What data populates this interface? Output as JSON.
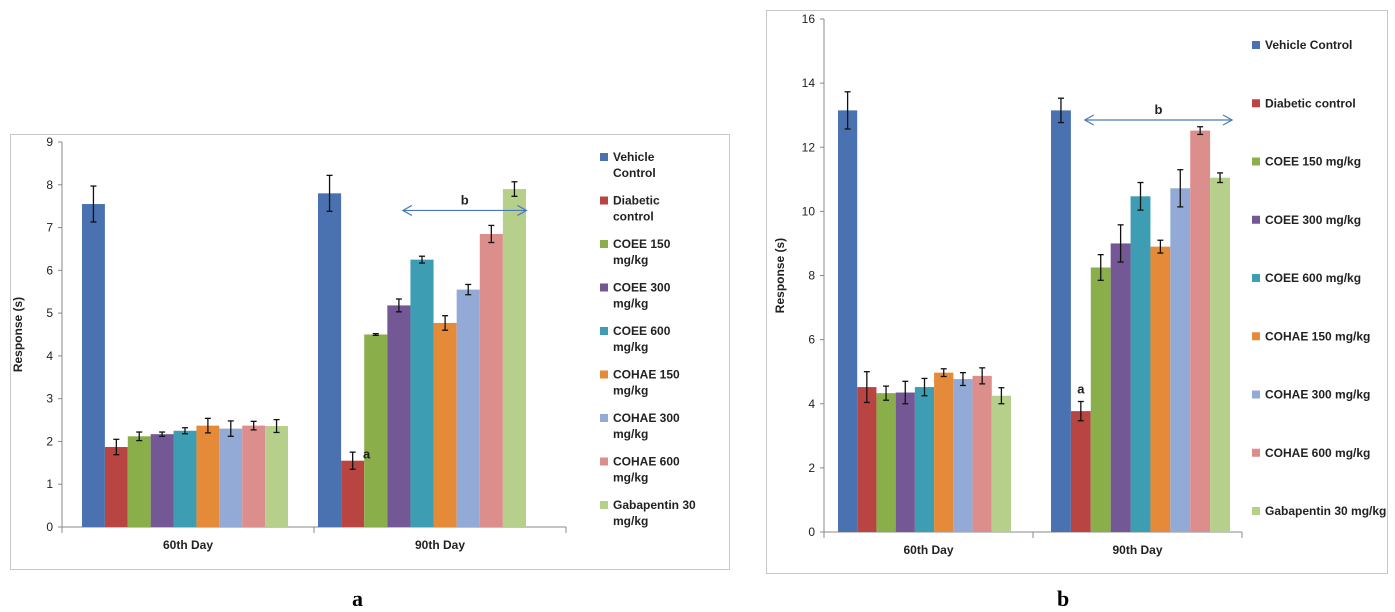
{
  "panel_labels": [
    "a",
    "b"
  ],
  "colors": [
    "#4a72b0",
    "#b94543",
    "#8aae4a",
    "#735895",
    "#3d9db3",
    "#e58a39",
    "#93aad6",
    "#dc8e8c",
    "#b6d08c"
  ],
  "chart_data": [
    {
      "type": "bar",
      "panel": "a",
      "ylabel": "Response (s)",
      "xlabel": "",
      "categories": [
        "60th Day",
        "90th Day"
      ],
      "ylim": [
        0,
        9
      ],
      "yticks": [
        0,
        1,
        2,
        3,
        4,
        5,
        6,
        7,
        8,
        9
      ],
      "legend_position": "right",
      "series": [
        {
          "name": "Vehicle Control",
          "values": [
            7.55,
            7.8
          ],
          "errors": [
            0.42,
            0.42
          ]
        },
        {
          "name": "Diabetic control",
          "values": [
            1.87,
            1.55
          ],
          "errors": [
            0.18,
            0.2
          ]
        },
        {
          "name": "COEE 150 mg/kg",
          "values": [
            2.12,
            4.5
          ],
          "errors": [
            0.1,
            0.02
          ]
        },
        {
          "name": "COEE 300 mg/kg",
          "values": [
            2.17,
            5.18
          ],
          "errors": [
            0.05,
            0.15
          ]
        },
        {
          "name": "COEE 600 mg/kg",
          "values": [
            2.25,
            6.25
          ],
          "errors": [
            0.07,
            0.08
          ]
        },
        {
          "name": "COHAE 150 mg/kg",
          "values": [
            2.37,
            4.77
          ],
          "errors": [
            0.17,
            0.17
          ]
        },
        {
          "name": "COHAE 300 mg/kg",
          "values": [
            2.3,
            5.55
          ],
          "errors": [
            0.18,
            0.12
          ]
        },
        {
          "name": "COHAE 600 mg/kg",
          "values": [
            2.37,
            6.85
          ],
          "errors": [
            0.1,
            0.2
          ]
        },
        {
          "name": "Gabapentin 30 mg/kg",
          "values": [
            2.36,
            7.9
          ],
          "errors": [
            0.15,
            0.17
          ]
        }
      ],
      "annotations": [
        {
          "text": "a",
          "category": 1,
          "series": 1
        },
        {
          "text": "b",
          "type": "double-arrow",
          "from_series": 3,
          "to_series": 8,
          "y": 7.4
        }
      ]
    },
    {
      "type": "bar",
      "panel": "b",
      "ylabel": "Response (s)",
      "xlabel": "",
      "categories": [
        "60th Day",
        "90th Day"
      ],
      "ylim": [
        0,
        16
      ],
      "yticks": [
        0,
        2,
        4,
        6,
        8,
        10,
        12,
        14,
        16
      ],
      "legend_position": "right",
      "series": [
        {
          "name": "Vehicle Control",
          "values": [
            13.15,
            13.15
          ],
          "errors": [
            0.58,
            0.38
          ]
        },
        {
          "name": "Diabetic control",
          "values": [
            4.52,
            3.77
          ],
          "errors": [
            0.48,
            0.3
          ]
        },
        {
          "name": "COEE 150 mg/kg",
          "values": [
            4.33,
            8.25
          ],
          "errors": [
            0.22,
            0.4
          ]
        },
        {
          "name": "COEE 300 mg/kg",
          "values": [
            4.35,
            9.0
          ],
          "errors": [
            0.35,
            0.58
          ]
        },
        {
          "name": "COEE 600 mg/kg",
          "values": [
            4.52,
            10.47
          ],
          "errors": [
            0.27,
            0.43
          ]
        },
        {
          "name": "COHAE 150 mg/kg",
          "values": [
            4.97,
            8.9
          ],
          "errors": [
            0.12,
            0.2
          ]
        },
        {
          "name": "COHAE 300 mg/kg",
          "values": [
            4.77,
            10.72
          ],
          "errors": [
            0.2,
            0.58
          ]
        },
        {
          "name": "COHAE 600 mg/kg",
          "values": [
            4.87,
            12.52
          ],
          "errors": [
            0.25,
            0.12
          ]
        },
        {
          "name": "Gabapentin 30 mg/kg",
          "values": [
            4.25,
            11.05
          ],
          "errors": [
            0.25,
            0.15
          ]
        }
      ],
      "annotations": [
        {
          "text": "a",
          "category": 1,
          "series": 1
        },
        {
          "text": "b",
          "type": "double-arrow",
          "from_series": 1,
          "to_series": 8,
          "y": 12.85
        }
      ]
    }
  ]
}
